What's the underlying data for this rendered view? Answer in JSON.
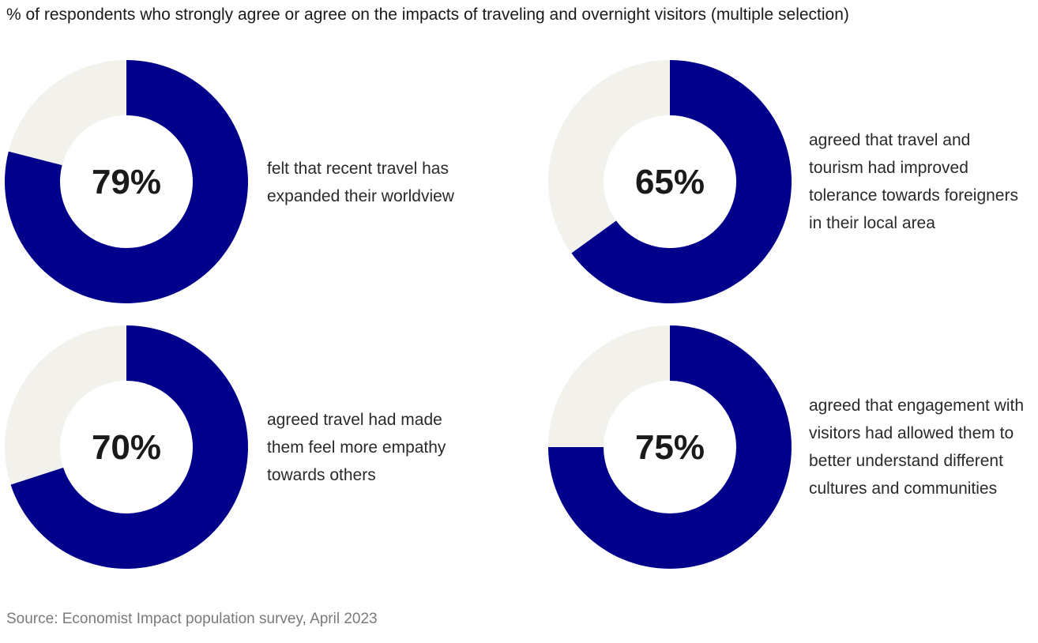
{
  "title": "% of respondents who strongly agree or agree on the impacts of traveling and overnight visitors (multiple selection)",
  "source": "Source: Economist Impact population survey, April 2023",
  "colors": {
    "filled": "#00008b",
    "track": "#f2f1ec",
    "background": "#ffffff"
  },
  "chart_data": [
    {
      "type": "pie",
      "variant": "donut",
      "value": 79,
      "max": 100,
      "center_label": "79%",
      "description_lines": [
        "felt that recent travel has",
        "expanded their worldview"
      ]
    },
    {
      "type": "pie",
      "variant": "donut",
      "value": 65,
      "max": 100,
      "center_label": "65%",
      "description_lines": [
        "agreed that travel and",
        "tourism had improved",
        "tolerance towards foreigners",
        "in their local area"
      ]
    },
    {
      "type": "pie",
      "variant": "donut",
      "value": 70,
      "max": 100,
      "center_label": "70%",
      "description_lines": [
        "agreed travel had made",
        "them feel more empathy",
        "towards others"
      ]
    },
    {
      "type": "pie",
      "variant": "donut",
      "value": 75,
      "max": 100,
      "center_label": "75%",
      "description_lines": [
        "agreed that engagement with",
        "visitors had allowed them to",
        "better understand different",
        "cultures and communities"
      ]
    }
  ]
}
